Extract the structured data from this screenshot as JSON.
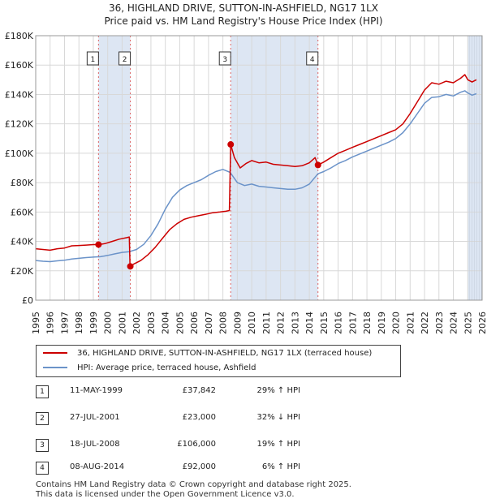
{
  "title": {
    "line1": "36, HIGHLAND DRIVE, SUTTON-IN-ASHFIELD, NG17 1LX",
    "line2": "Price paid vs. HM Land Registry's House Price Index (HPI)"
  },
  "colors": {
    "price_line": "#cc0000",
    "hpi_line": "#6b93c9",
    "shade": "#dde6f3",
    "vline": "#dd6666"
  },
  "chart_data": {
    "type": "line",
    "title": "Price paid vs. HM Land Registry's House Price Index (HPI)",
    "xlabel": "",
    "ylabel": "",
    "xlim": [
      1995,
      2026
    ],
    "ylim": [
      0,
      180000
    ],
    "grid": true,
    "x_ticks": [
      "1995",
      "1996",
      "1997",
      "1998",
      "1999",
      "2000",
      "2001",
      "2002",
      "2003",
      "2004",
      "2005",
      "2006",
      "2007",
      "2008",
      "2009",
      "2010",
      "2011",
      "2012",
      "2013",
      "2014",
      "2015",
      "2016",
      "2017",
      "2018",
      "2019",
      "2020",
      "2021",
      "2022",
      "2023",
      "2024",
      "2025",
      "2026"
    ],
    "y_ticks": [
      {
        "value": 0,
        "label": "£0"
      },
      {
        "value": 20000,
        "label": "£20K"
      },
      {
        "value": 40000,
        "label": "£40K"
      },
      {
        "value": 60000,
        "label": "£60K"
      },
      {
        "value": 80000,
        "label": "£80K"
      },
      {
        "value": 100000,
        "label": "£100K"
      },
      {
        "value": 120000,
        "label": "£120K"
      },
      {
        "value": 140000,
        "label": "£140K"
      },
      {
        "value": 160000,
        "label": "£160K"
      },
      {
        "value": 180000,
        "label": "£180K"
      }
    ],
    "shaded_ranges": [
      [
        1999.36,
        2001.57
      ],
      [
        2008.54,
        2014.6
      ],
      [
        2025.0,
        2026.0
      ]
    ],
    "series": [
      {
        "name": "36, HIGHLAND DRIVE, SUTTON-IN-ASHFIELD, NG17 1LX (terraced house)",
        "color": "#cc0000",
        "points": [
          [
            1995.0,
            35000
          ],
          [
            1995.5,
            34500
          ],
          [
            1996.0,
            34000
          ],
          [
            1996.5,
            35000
          ],
          [
            1997.0,
            35500
          ],
          [
            1997.5,
            37000
          ],
          [
            1998.0,
            37200
          ],
          [
            1998.5,
            37500
          ],
          [
            1999.0,
            37800
          ],
          [
            1999.36,
            37842
          ],
          [
            1999.8,
            38500
          ],
          [
            2000.3,
            40000
          ],
          [
            2000.8,
            41500
          ],
          [
            2001.3,
            42500
          ],
          [
            2001.5,
            43000
          ],
          [
            2001.55,
            23000
          ],
          [
            2001.8,
            24500
          ],
          [
            2002.3,
            27000
          ],
          [
            2002.8,
            31000
          ],
          [
            2003.3,
            36000
          ],
          [
            2003.8,
            42000
          ],
          [
            2004.3,
            48000
          ],
          [
            2004.8,
            52000
          ],
          [
            2005.3,
            55000
          ],
          [
            2005.8,
            56500
          ],
          [
            2006.3,
            57500
          ],
          [
            2006.8,
            58500
          ],
          [
            2007.3,
            59500
          ],
          [
            2007.8,
            60000
          ],
          [
            2008.2,
            60500
          ],
          [
            2008.45,
            61000
          ],
          [
            2008.54,
            106000
          ],
          [
            2008.8,
            97000
          ],
          [
            2009.2,
            90000
          ],
          [
            2009.6,
            93000
          ],
          [
            2010.0,
            95000
          ],
          [
            2010.5,
            93500
          ],
          [
            2011.0,
            94000
          ],
          [
            2011.5,
            92500
          ],
          [
            2012.0,
            92000
          ],
          [
            2012.5,
            91500
          ],
          [
            2013.0,
            91000
          ],
          [
            2013.5,
            91500
          ],
          [
            2014.0,
            93500
          ],
          [
            2014.4,
            97000
          ],
          [
            2014.6,
            92000
          ],
          [
            2015.0,
            94000
          ],
          [
            2015.5,
            97000
          ],
          [
            2016.0,
            100000
          ],
          [
            2016.5,
            102000
          ],
          [
            2017.0,
            104000
          ],
          [
            2017.5,
            106000
          ],
          [
            2018.0,
            108000
          ],
          [
            2018.5,
            110000
          ],
          [
            2019.0,
            112000
          ],
          [
            2019.5,
            114000
          ],
          [
            2020.0,
            116000
          ],
          [
            2020.5,
            120000
          ],
          [
            2021.0,
            127000
          ],
          [
            2021.5,
            135000
          ],
          [
            2022.0,
            143000
          ],
          [
            2022.5,
            148000
          ],
          [
            2023.0,
            147000
          ],
          [
            2023.5,
            149000
          ],
          [
            2024.0,
            148000
          ],
          [
            2024.5,
            151000
          ],
          [
            2024.8,
            153500
          ],
          [
            2025.0,
            150000
          ],
          [
            2025.3,
            148500
          ],
          [
            2025.6,
            150000
          ]
        ]
      },
      {
        "name": "HPI: Average price, terraced house, Ashfield",
        "color": "#6b93c9",
        "points": [
          [
            1995.0,
            27000
          ],
          [
            1995.5,
            26500
          ],
          [
            1996.0,
            26200
          ],
          [
            1996.5,
            26800
          ],
          [
            1997.0,
            27200
          ],
          [
            1997.5,
            28000
          ],
          [
            1998.0,
            28500
          ],
          [
            1998.5,
            29000
          ],
          [
            1999.0,
            29300
          ],
          [
            1999.5,
            29600
          ],
          [
            2000.0,
            30500
          ],
          [
            2000.5,
            31500
          ],
          [
            2001.0,
            32500
          ],
          [
            2001.5,
            33000
          ],
          [
            2002.0,
            34500
          ],
          [
            2002.5,
            38000
          ],
          [
            2003.0,
            44000
          ],
          [
            2003.5,
            52000
          ],
          [
            2004.0,
            62000
          ],
          [
            2004.5,
            70000
          ],
          [
            2005.0,
            75000
          ],
          [
            2005.5,
            78000
          ],
          [
            2006.0,
            80000
          ],
          [
            2006.5,
            82000
          ],
          [
            2007.0,
            85000
          ],
          [
            2007.5,
            87500
          ],
          [
            2008.0,
            89000
          ],
          [
            2008.5,
            87000
          ],
          [
            2009.0,
            80000
          ],
          [
            2009.5,
            78000
          ],
          [
            2010.0,
            79000
          ],
          [
            2010.5,
            77500
          ],
          [
            2011.0,
            77000
          ],
          [
            2011.5,
            76500
          ],
          [
            2012.0,
            76000
          ],
          [
            2012.5,
            75500
          ],
          [
            2013.0,
            75500
          ],
          [
            2013.5,
            76500
          ],
          [
            2014.0,
            79000
          ],
          [
            2014.6,
            86000
          ],
          [
            2015.0,
            87500
          ],
          [
            2015.5,
            90000
          ],
          [
            2016.0,
            93000
          ],
          [
            2016.5,
            95000
          ],
          [
            2017.0,
            97500
          ],
          [
            2017.5,
            99500
          ],
          [
            2018.0,
            101500
          ],
          [
            2018.5,
            103500
          ],
          [
            2019.0,
            105500
          ],
          [
            2019.5,
            107500
          ],
          [
            2020.0,
            110000
          ],
          [
            2020.5,
            114000
          ],
          [
            2021.0,
            120000
          ],
          [
            2021.5,
            127000
          ],
          [
            2022.0,
            134000
          ],
          [
            2022.5,
            138000
          ],
          [
            2023.0,
            138500
          ],
          [
            2023.5,
            140000
          ],
          [
            2024.0,
            139000
          ],
          [
            2024.5,
            141500
          ],
          [
            2024.8,
            142500
          ],
          [
            2025.0,
            141000
          ],
          [
            2025.3,
            139500
          ],
          [
            2025.6,
            140500
          ]
        ]
      }
    ],
    "markers": [
      {
        "label": "1",
        "x": 1999.36,
        "value": 37842
      },
      {
        "label": "2",
        "x": 2001.57,
        "value": 23000
      },
      {
        "label": "3",
        "x": 2008.54,
        "value": 106000
      },
      {
        "label": "4",
        "x": 2014.6,
        "value": 92000
      }
    ]
  },
  "legend": {
    "price_label": "36, HIGHLAND DRIVE, SUTTON-IN-ASHFIELD, NG17 1LX (terraced house)",
    "hpi_label": "HPI: Average price, terraced house, Ashfield"
  },
  "sales": [
    {
      "num": "1",
      "date": "11-MAY-1999",
      "price": "£37,842",
      "hpi": "29% ↑ HPI"
    },
    {
      "num": "2",
      "date": "27-JUL-2001",
      "price": "£23,000",
      "hpi": "32% ↓ HPI"
    },
    {
      "num": "3",
      "date": "18-JUL-2008",
      "price": "£106,000",
      "hpi": "19% ↑ HPI"
    },
    {
      "num": "4",
      "date": "08-AUG-2014",
      "price": "£92,000",
      "hpi": "6% ↑ HPI"
    }
  ],
  "footer": {
    "line1": "Contains HM Land Registry data © Crown copyright and database right 2025.",
    "line2": "This data is licensed under the Open Government Licence v3.0."
  }
}
